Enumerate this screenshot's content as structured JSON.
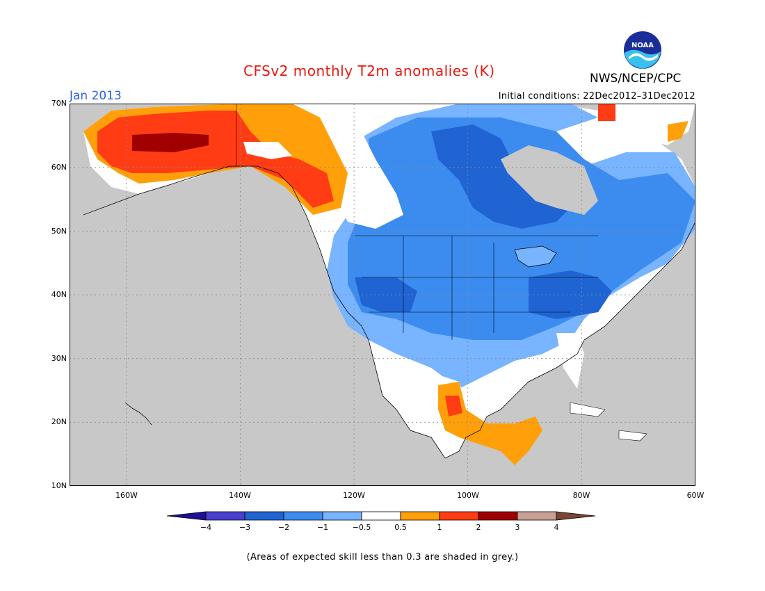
{
  "header": {
    "title": "CFSv2 monthly T2m anomalies (K)",
    "agency": "NWS/NCEP/CPC",
    "valid_month": "Jan 2013",
    "initial_conditions": "Initial conditions: 22Dec2012–31Dec2012",
    "logo_text": "NOAA"
  },
  "map": {
    "region": "North America",
    "lon_range": [
      -170,
      -60
    ],
    "lat_range": [
      10,
      70
    ],
    "lat_labels": [
      "70N",
      "60N",
      "50N",
      "40N",
      "30N",
      "20N",
      "10N"
    ],
    "lon_labels": [
      "160W",
      "140W",
      "120W",
      "100W",
      "80W",
      "60W"
    ],
    "colors": {
      "ocean_grey": "#c8c8c8",
      "land_neutral": "#ffffff",
      "coast": "#000000"
    }
  },
  "colorbar": {
    "bins": [
      {
        "color": "#1e0f96"
      },
      {
        "color": "#4a3fcc"
      },
      {
        "color": "#1f64d2"
      },
      {
        "color": "#3c8cf0"
      },
      {
        "color": "#78b4ff"
      },
      {
        "color": "#ffffff"
      },
      {
        "color": "#ffa00a"
      },
      {
        "color": "#ff3c14"
      },
      {
        "color": "#a00000"
      },
      {
        "color": "#c8a096"
      },
      {
        "color": "#784632"
      }
    ],
    "labels": [
      "−4",
      "−3",
      "−2",
      "−1",
      "−0.5",
      "0.5",
      "1",
      "2",
      "3",
      "4"
    ]
  },
  "footnote": "(Areas of expected skill less than 0.3 are shaded in grey.)"
}
